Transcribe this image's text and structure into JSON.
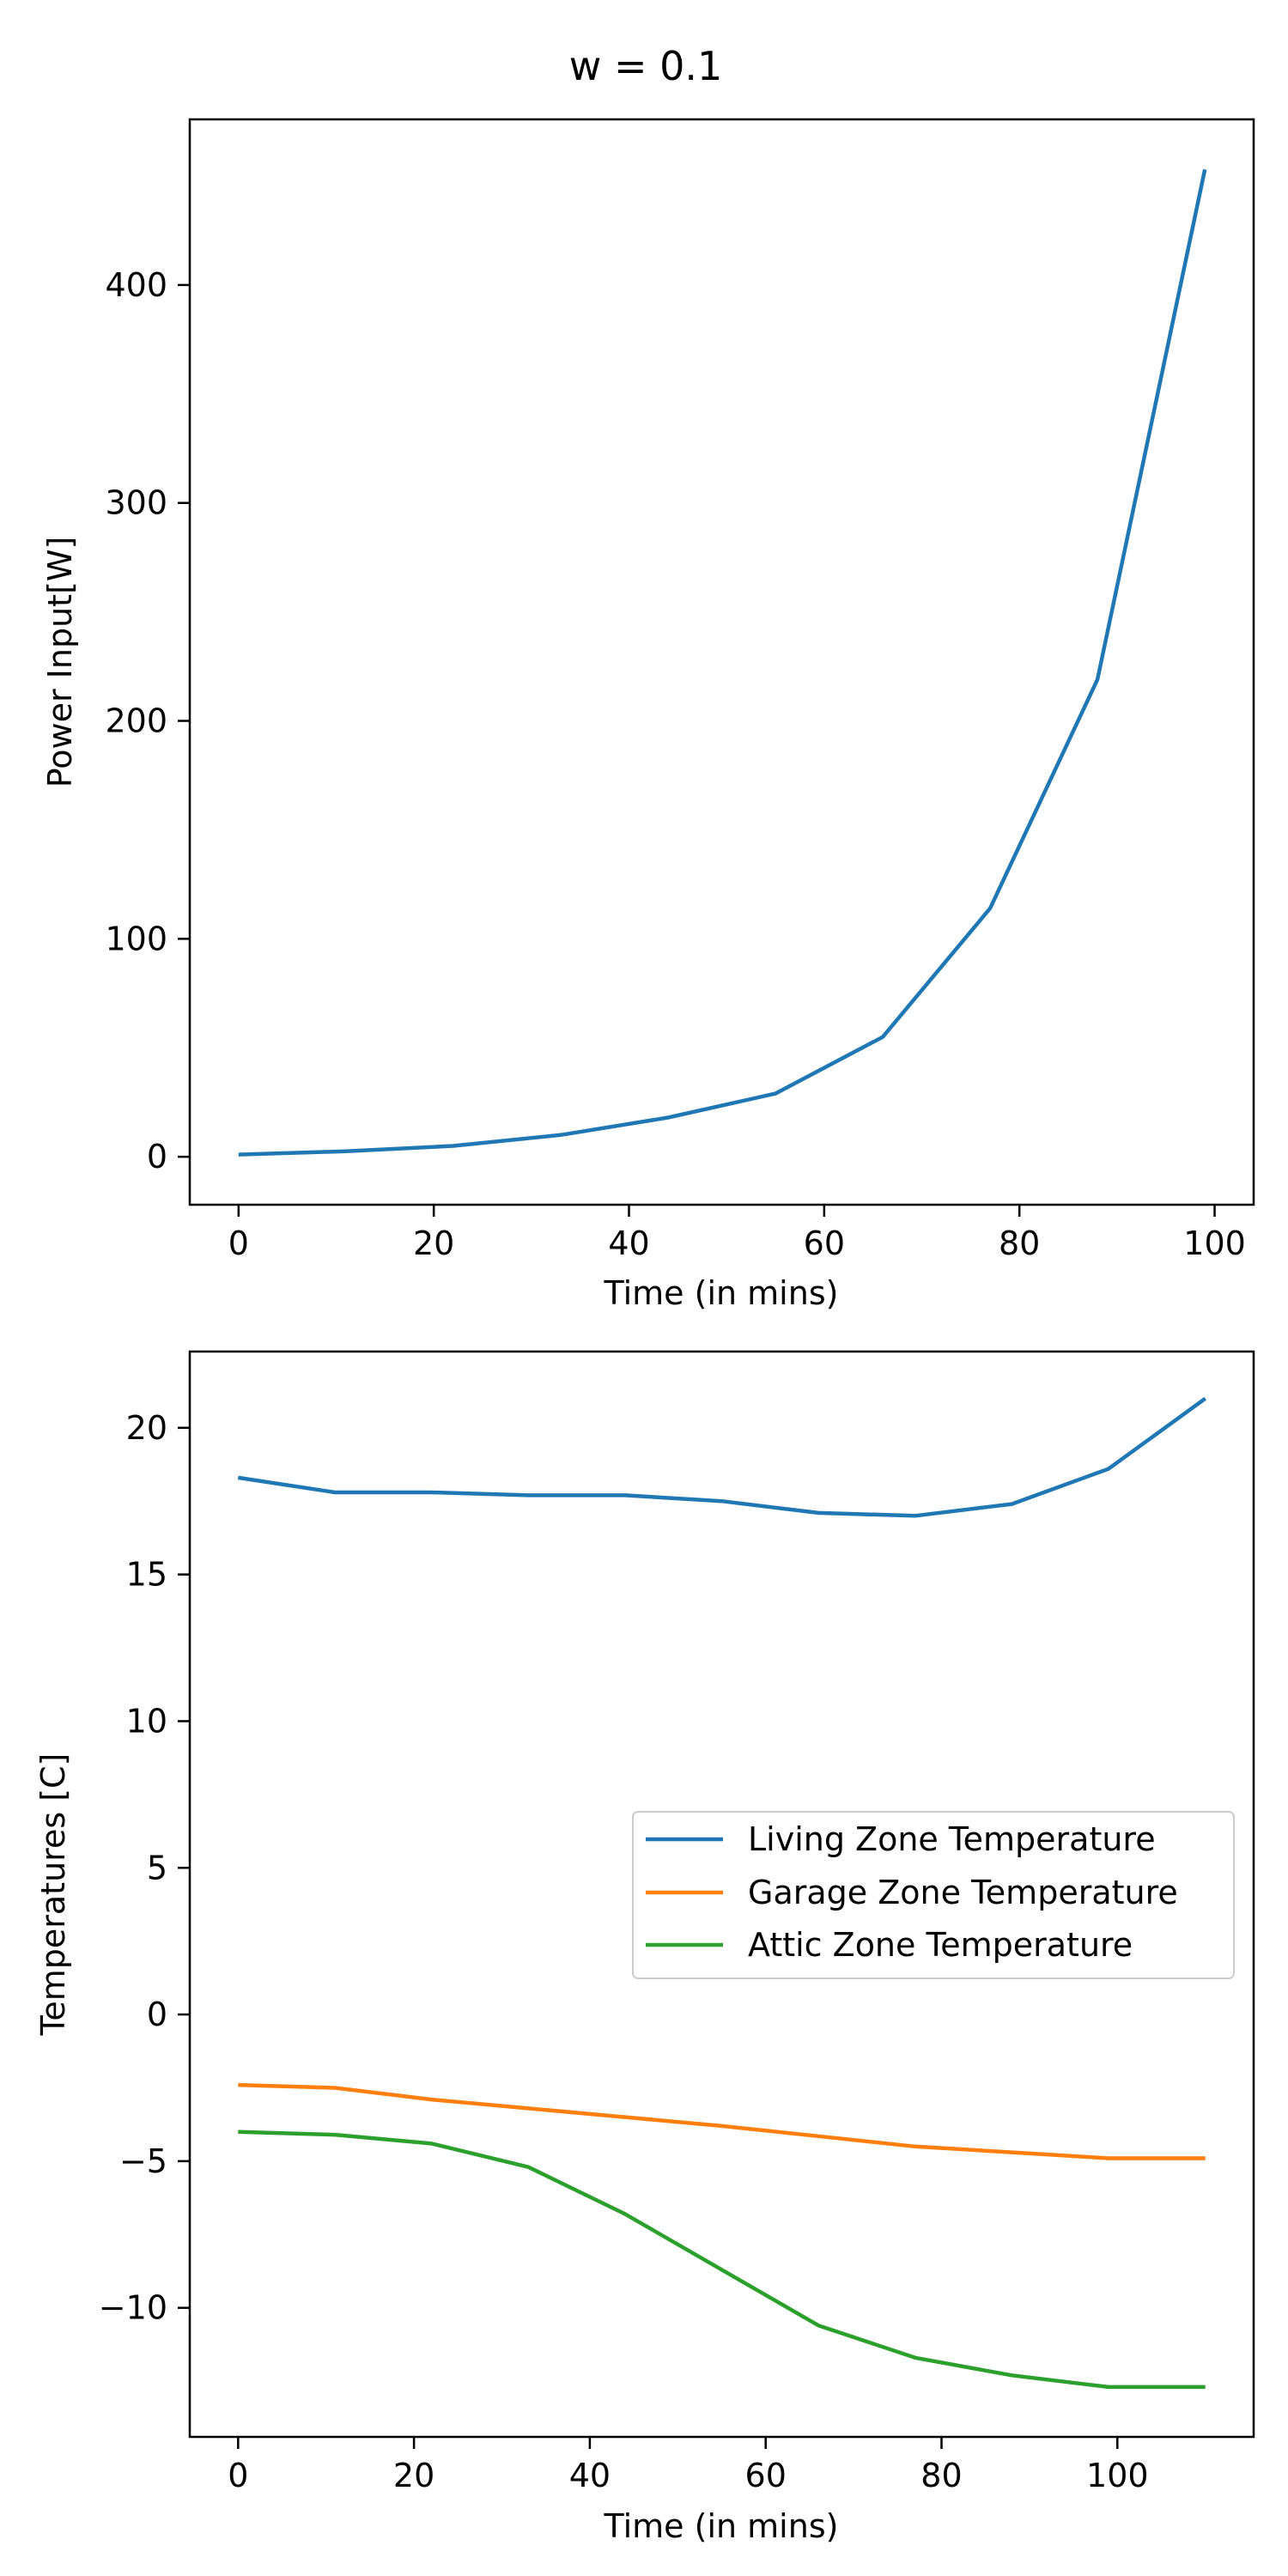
{
  "figure": {
    "title": "w = 0.1"
  },
  "chart_data": [
    {
      "type": "line",
      "xlabel": "Time (in mins)",
      "ylabel": "Power Input[W]",
      "xlim": [
        -5,
        104
      ],
      "ylim": [
        -22,
        476
      ],
      "xticks": [
        0,
        20,
        40,
        60,
        80,
        100
      ],
      "yticks": [
        0,
        100,
        200,
        300,
        400
      ],
      "grid": false,
      "series": [
        {
          "name": "",
          "color": "#1f77b4",
          "x": [
            0,
            11,
            22,
            33,
            44,
            55,
            66,
            77,
            88,
            99
          ],
          "y": [
            1,
            2.5,
            5,
            10,
            18,
            29,
            55,
            114,
            219,
            453
          ]
        }
      ]
    },
    {
      "type": "line",
      "xlabel": "Time (in mins)",
      "ylabel": "Temperatures [C]",
      "xlim": [
        -5.5,
        115.5
      ],
      "ylim": [
        -14.4,
        22.6
      ],
      "xticks": [
        0,
        20,
        40,
        60,
        80,
        100
      ],
      "yticks": [
        -10,
        -5,
        0,
        5,
        10,
        15,
        20
      ],
      "ytick_labels": [
        "−10",
        "−5",
        "0",
        "5",
        "10",
        "15",
        "20"
      ],
      "grid": false,
      "legend": "center-right",
      "x": [
        0,
        11,
        22,
        33,
        44,
        55,
        66,
        77,
        88,
        99,
        110
      ],
      "series": [
        {
          "name": "Living Zone Temperature",
          "color": "#1f77b4",
          "values": [
            18.3,
            17.8,
            17.8,
            17.7,
            17.7,
            17.5,
            17.1,
            17.0,
            17.4,
            18.6,
            21.0
          ]
        },
        {
          "name": "Garage Zone Temperature",
          "color": "#ff7f0e",
          "values": [
            -2.4,
            -2.5,
            -2.9,
            -3.2,
            -3.5,
            -3.8,
            -4.15,
            -4.5,
            -4.7,
            -4.9,
            -4.9
          ]
        },
        {
          "name": "Attic Zone Temperature",
          "color": "#2ca02c",
          "values": [
            -4.0,
            -4.1,
            -4.4,
            -5.2,
            -6.8,
            -8.7,
            -10.6,
            -11.7,
            -12.3,
            -12.7,
            -12.7
          ]
        }
      ]
    }
  ]
}
